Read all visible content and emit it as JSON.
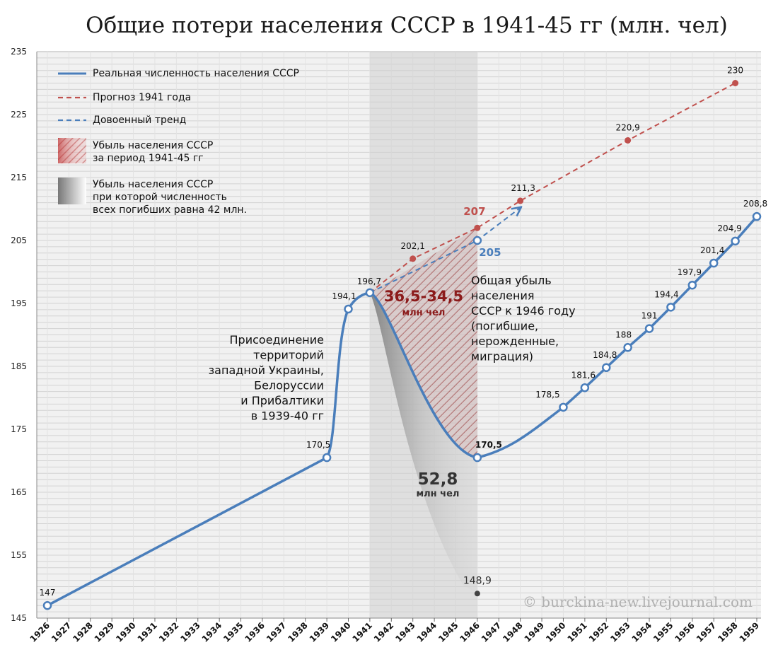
{
  "chart_data": {
    "type": "line",
    "title": "Общие потери населения СССР в 1941-45 гг (млн. чел)",
    "xlabel": "",
    "ylabel": "",
    "ylim": [
      145,
      235
    ],
    "yticks": [
      145,
      155,
      165,
      175,
      185,
      195,
      205,
      215,
      225,
      235
    ],
    "categories": [
      "1926",
      "1927",
      "1928",
      "1929",
      "1930",
      "1931",
      "1932",
      "1933",
      "1934",
      "1935",
      "1936",
      "1937",
      "1938",
      "1939",
      "1940",
      "1941",
      "1942",
      "1943",
      "1944",
      "1945",
      "1946",
      "1947",
      "1948",
      "1949",
      "1950",
      "1951",
      "1952",
      "1953",
      "1954",
      "1955",
      "1956",
      "1957",
      "1958",
      "1959"
    ],
    "grid": true,
    "legend_position": "top-left",
    "legend": [
      {
        "label": "Реальная численность населения СССР",
        "style": "solid-line",
        "color": "#4a7ebb"
      },
      {
        "label": "Прогноз 1941 года",
        "style": "dashed-line",
        "color": "#c0504d"
      },
      {
        "label": "Довоенный тренд",
        "style": "dashed-line",
        "color": "#4a7ebb"
      },
      {
        "label": "Убыль населения СССР\nза период 1941-45 гг",
        "style": "hatched-red"
      },
      {
        "label": "Убыль населения СССР\nпри которой численность\nвсех погибших равна 42 млн.",
        "style": "gray-gradient"
      }
    ],
    "series": [
      {
        "name": "Реальная численность населения СССР",
        "color": "#4a7ebb",
        "points": [
          {
            "x": "1926",
            "y": 147,
            "label": "147"
          },
          {
            "x": "1939",
            "y": 170.5,
            "label": "170,5"
          },
          {
            "x": "1940",
            "y": 194.1,
            "label": "194,1"
          },
          {
            "x": "1941",
            "y": 196.7,
            "label": "196,7"
          },
          {
            "x": "1946",
            "y": 170.5,
            "label": "170,5"
          },
          {
            "x": "1950",
            "y": 178.5,
            "label": "178,5"
          },
          {
            "x": "1951",
            "y": 181.6,
            "label": "181,6"
          },
          {
            "x": "1952",
            "y": 184.8,
            "label": "184,8"
          },
          {
            "x": "1953",
            "y": 188,
            "label": "188"
          },
          {
            "x": "1954",
            "y": 191,
            "label": "191"
          },
          {
            "x": "1955",
            "y": 194.4,
            "label": "194,4"
          },
          {
            "x": "1956",
            "y": 197.9,
            "label": "197,9"
          },
          {
            "x": "1957",
            "y": 201.4,
            "label": "201,4"
          },
          {
            "x": "1958",
            "y": 204.9,
            "label": "204,9"
          },
          {
            "x": "1959",
            "y": 208.8,
            "label": "208,8"
          }
        ]
      },
      {
        "name": "Прогноз 1941 года",
        "color": "#c0504d",
        "points": [
          {
            "x": "1941",
            "y": 196.7,
            "label": ""
          },
          {
            "x": "1943",
            "y": 202.1,
            "label": "202,1"
          },
          {
            "x": "1946",
            "y": 207,
            "label": "207"
          },
          {
            "x": "1948",
            "y": 211.3,
            "label": "211,3"
          },
          {
            "x": "1953",
            "y": 220.9,
            "label": "220,9"
          },
          {
            "x": "1958",
            "y": 230,
            "label": "230"
          }
        ]
      },
      {
        "name": "Довоенный тренд",
        "color": "#4a7ebb",
        "points": [
          {
            "x": "1941",
            "y": 196.7,
            "label": ""
          },
          {
            "x": "1946",
            "y": 205,
            "label": "205"
          },
          {
            "x": "1948",
            "y": 210.2,
            "label": ""
          }
        ]
      },
      {
        "name": "",
        "color": "#444444",
        "points": [
          {
            "x": "1946",
            "y": 148.9,
            "label": "148,9"
          }
        ]
      }
    ],
    "annotations": [
      {
        "id": "annexation",
        "text": "Присоединение\nтерриторий\nзападной Украины,\nБелоруссии\nи Прибалтики\nв 1939-40 гг"
      },
      {
        "id": "total_loss",
        "text": "Общая убыль\nнаселения\nСССР к 1946 году\n(погибшие,\nнерожденные,\nмиграция)"
      },
      {
        "id": "loss_value",
        "text": "36,5-34,5"
      },
      {
        "id": "loss_unit",
        "text": "млн чел"
      },
      {
        "id": "gray_value",
        "text": "52,8"
      },
      {
        "id": "gray_unit",
        "text": "млн чел"
      }
    ],
    "credit": "© burckina-new.livejournal.com"
  }
}
